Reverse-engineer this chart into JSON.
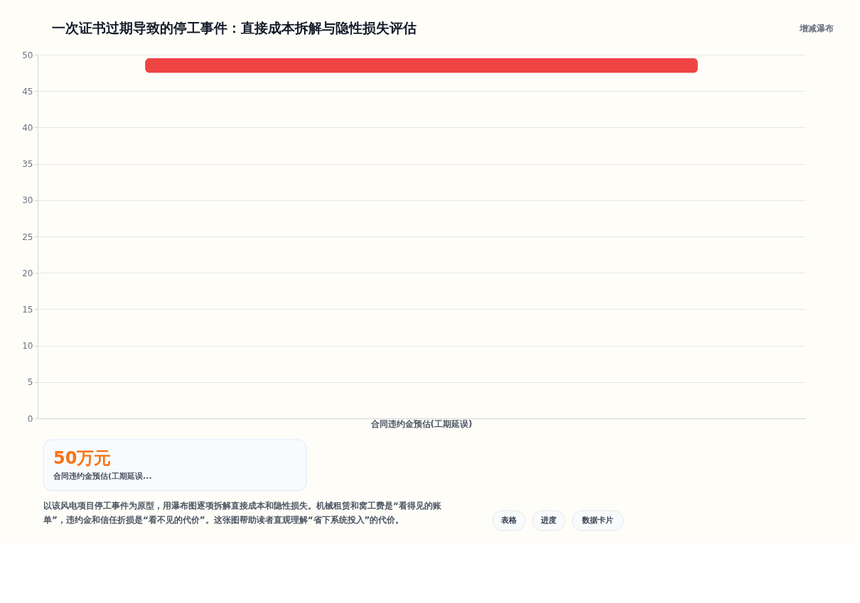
{
  "chart_data": {
    "type": "bar",
    "title": "一次证书过期导致的停工事件：直接成本拆解与隐性损失评估",
    "subtitle": "增减瀑布",
    "categories": [
      "合同违约金预估(工期延误)"
    ],
    "values": [
      2
    ],
    "base": [
      47.5
    ],
    "colors": [
      "#ef4444"
    ],
    "ylim": [
      0,
      50
    ],
    "yticks": [
      0,
      5,
      10,
      15,
      20,
      25,
      30,
      35,
      40,
      45,
      50
    ],
    "grid": "y",
    "annotations": [
      "50万元",
      "合同违约金预估(工期延误...",
      "以该风电项目停工事件为原型，用瀑布图逐项拆解直接成本和隐性损失。机械租赁和窝工费是“看得见的账单”，违约金和信任折损是“看不见的代价”。这张图帮助读者直观理解“省下系统投入”的代价。",
      "表格",
      "进度",
      "数据卡片"
    ]
  }
}
